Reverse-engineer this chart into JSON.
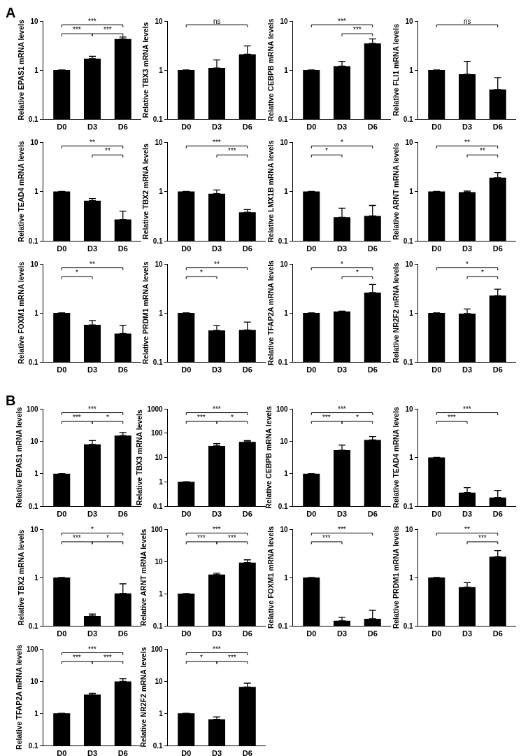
{
  "chart_data": [
    {
      "type": "bar",
      "ylabel": "Relative EPAS1 mRNA levels",
      "categories": [
        "D0",
        "D3",
        "D6"
      ],
      "values": [
        1,
        1.7,
        4.3
      ],
      "errors": [
        null,
        [
          1.7,
          1.9
        ],
        [
          4.3,
          4.7
        ]
      ],
      "color": "#000000",
      "log": true,
      "ylim": [
        0.1,
        10
      ],
      "yticks": [
        0.1,
        1,
        10
      ],
      "grid": false,
      "annotations": [
        "A",
        "***",
        "***",
        "***"
      ]
    },
    {
      "type": "bar",
      "ylabel": "Relative TBX3 mRNA levels",
      "categories": [
        "D0",
        "D3",
        "D6"
      ],
      "values": [
        1,
        1.1,
        2.1
      ],
      "errors": [
        null,
        [
          1.1,
          1.6
        ],
        [
          2.1,
          3.1
        ]
      ],
      "color": "#000000",
      "log": true,
      "ylim": [
        0.1,
        10
      ],
      "yticks": [
        0.1,
        1,
        10
      ],
      "grid": false,
      "annotations": [
        "ns"
      ]
    },
    {
      "type": "bar",
      "ylabel": "Relative CEBPB mRNA levels",
      "categories": [
        "D0",
        "D3",
        "D6"
      ],
      "values": [
        1,
        1.2,
        3.5
      ],
      "errors": [
        null,
        [
          1.2,
          1.5
        ],
        [
          3.5,
          4.3
        ]
      ],
      "color": "#000000",
      "log": true,
      "ylim": [
        0.1,
        10
      ],
      "yticks": [
        0.1,
        1,
        10
      ],
      "grid": false,
      "annotations": [
        "***",
        "***"
      ]
    },
    {
      "type": "bar",
      "ylabel": "Relative FLI1 mRNA levels",
      "categories": [
        "D0",
        "D3",
        "D6"
      ],
      "values": [
        1,
        0.82,
        0.4
      ],
      "errors": [
        null,
        [
          0.82,
          1.5
        ],
        [
          0.4,
          0.7
        ]
      ],
      "color": "#000000",
      "log": true,
      "ylim": [
        0.1,
        10
      ],
      "yticks": [
        0.1,
        1,
        10
      ],
      "grid": false,
      "annotations": [
        "ns"
      ]
    },
    {
      "type": "bar",
      "ylabel": "Relative TEAD4 mRNA levels",
      "categories": [
        "D0",
        "D3",
        "D6"
      ],
      "values": [
        1,
        0.65,
        0.27
      ],
      "errors": [
        null,
        [
          0.65,
          0.72
        ],
        [
          0.27,
          0.4
        ]
      ],
      "color": "#000000",
      "log": true,
      "ylim": [
        0.1,
        10
      ],
      "yticks": [
        0.1,
        1,
        10
      ],
      "grid": false,
      "annotations": [
        "**",
        "**"
      ]
    },
    {
      "type": "bar",
      "ylabel": "Relative TBX2 mRNA levels",
      "categories": [
        "D0",
        "D3",
        "D6"
      ],
      "values": [
        1,
        0.9,
        0.38
      ],
      "errors": [
        null,
        [
          0.9,
          1.07
        ],
        [
          0.38,
          0.43
        ]
      ],
      "color": "#000000",
      "log": true,
      "ylim": [
        0.1,
        10
      ],
      "yticks": [
        0.1,
        1,
        10
      ],
      "grid": false,
      "annotations": [
        "***",
        "***"
      ]
    },
    {
      "type": "bar",
      "ylabel": "Relative LMX1B mRNA levels",
      "categories": [
        "D0",
        "D3",
        "D6"
      ],
      "values": [
        1,
        0.3,
        0.32
      ],
      "errors": [
        null,
        [
          0.3,
          0.46
        ],
        [
          0.32,
          0.52
        ]
      ],
      "color": "#000000",
      "log": true,
      "ylim": [
        0.1,
        10
      ],
      "yticks": [
        0.1,
        1,
        10
      ],
      "grid": false,
      "annotations": [
        "*",
        "*"
      ]
    },
    {
      "type": "bar",
      "ylabel": "Relative ARNT mRNA levels",
      "categories": [
        "D0",
        "D3",
        "D6"
      ],
      "values": [
        1,
        0.97,
        1.9
      ],
      "errors": [
        null,
        [
          0.97,
          1.02
        ],
        [
          1.9,
          2.4
        ]
      ],
      "color": "#000000",
      "log": true,
      "ylim": [
        0.1,
        10
      ],
      "yticks": [
        0.1,
        1,
        10
      ],
      "grid": false,
      "annotations": [
        "**",
        "**"
      ]
    },
    {
      "type": "bar",
      "ylabel": "Relative FOXM1 mRNA levels",
      "categories": [
        "D0",
        "D3",
        "D6"
      ],
      "values": [
        1,
        0.57,
        0.38
      ],
      "errors": [
        null,
        [
          0.57,
          0.7
        ],
        [
          0.38,
          0.56
        ]
      ],
      "color": "#000000",
      "log": true,
      "ylim": [
        0.1,
        10
      ],
      "yticks": [
        0.1,
        1,
        10
      ],
      "grid": false,
      "annotations": [
        "**",
        "*"
      ]
    },
    {
      "type": "bar",
      "ylabel": "Relative PRDM1 mRNA levels",
      "categories": [
        "D0",
        "D3",
        "D6"
      ],
      "values": [
        1,
        0.44,
        0.45
      ],
      "errors": [
        null,
        [
          0.44,
          0.55
        ],
        [
          0.45,
          0.65
        ]
      ],
      "color": "#000000",
      "log": true,
      "ylim": [
        0.1,
        10
      ],
      "yticks": [
        0.1,
        1,
        10
      ],
      "grid": false,
      "annotations": [
        "**",
        "*"
      ]
    },
    {
      "type": "bar",
      "ylabel": "Relative TFAP2A mRNA levels",
      "categories": [
        "D0",
        "D3",
        "D6"
      ],
      "values": [
        1,
        1.07,
        2.6
      ],
      "errors": [
        null,
        [
          1.07,
          1.09
        ],
        [
          2.6,
          3.8
        ]
      ],
      "color": "#000000",
      "log": true,
      "ylim": [
        0.1,
        10
      ],
      "yticks": [
        0.1,
        1,
        10
      ],
      "grid": false,
      "annotations": [
        "*",
        "*"
      ]
    },
    {
      "type": "bar",
      "ylabel": "Relative NR2F2 mRNA levels",
      "categories": [
        "D0",
        "D3",
        "D6"
      ],
      "values": [
        1,
        0.97,
        2.25
      ],
      "errors": [
        null,
        [
          0.97,
          1.2
        ],
        [
          2.25,
          3.05
        ]
      ],
      "color": "#000000",
      "log": true,
      "ylim": [
        0.1,
        10
      ],
      "yticks": [
        0.1,
        1,
        10
      ],
      "grid": false,
      "annotations": [
        "*",
        "*"
      ]
    },
    {
      "type": "bar",
      "ylabel": "Relative EPAS1 mRNA levels",
      "categories": [
        "D0",
        "D3",
        "D6"
      ],
      "values": [
        1,
        8,
        15
      ],
      "errors": [
        null,
        [
          8,
          10.5
        ],
        [
          15,
          18.5
        ]
      ],
      "color": "#000000",
      "log": true,
      "ylim": [
        0.1,
        100
      ],
      "yticks": [
        0.1,
        1,
        10,
        100
      ],
      "grid": false,
      "annotations": [
        "B",
        "***",
        "***",
        "*"
      ]
    },
    {
      "type": "bar",
      "ylabel": "Relative TBX3 mRNA levels",
      "categories": [
        "D0",
        "D3",
        "D6"
      ],
      "values": [
        1,
        30,
        44
      ],
      "errors": [
        null,
        [
          30,
          37
        ],
        [
          44,
          49
        ]
      ],
      "color": "#000000",
      "log": true,
      "ylim": [
        0.1,
        1000
      ],
      "yticks": [
        0.1,
        1,
        10,
        100,
        1000
      ],
      "grid": false,
      "annotations": [
        "***",
        "***",
        "*"
      ]
    },
    {
      "type": "bar",
      "ylabel": "Relative CEBPB mRNA levels",
      "categories": [
        "D0",
        "D3",
        "D6"
      ],
      "values": [
        1,
        5.3,
        11
      ],
      "errors": [
        null,
        [
          5.3,
          7.6
        ],
        [
          11,
          14
        ]
      ],
      "color": "#000000",
      "log": true,
      "ylim": [
        0.1,
        100
      ],
      "yticks": [
        0.1,
        1,
        10,
        100
      ],
      "grid": false,
      "annotations": [
        "***",
        "***",
        "*"
      ]
    },
    {
      "type": "bar",
      "ylabel": "Relative TEAD4 mRNA levels",
      "categories": [
        "D0",
        "D3",
        "D6"
      ],
      "values": [
        1,
        0.19,
        0.15
      ],
      "errors": [
        null,
        [
          0.19,
          0.24
        ],
        [
          0.15,
          0.21
        ]
      ],
      "color": "#000000",
      "log": true,
      "ylim": [
        0.1,
        10
      ],
      "yticks": [
        0.1,
        1,
        10
      ],
      "grid": false,
      "annotations": [
        "***",
        "***"
      ]
    },
    {
      "type": "bar",
      "ylabel": "Relative TBX2 mRNA levels",
      "categories": [
        "D0",
        "D3",
        "D6"
      ],
      "values": [
        1,
        0.16,
        0.47
      ],
      "errors": [
        null,
        [
          0.16,
          0.175
        ],
        [
          0.47,
          0.74
        ]
      ],
      "color": "#000000",
      "log": true,
      "ylim": [
        0.1,
        10
      ],
      "yticks": [
        0.1,
        1,
        10
      ],
      "grid": false,
      "annotations": [
        "*",
        "***",
        "*"
      ]
    },
    {
      "type": "bar",
      "ylabel": "Relative ARNT mRNA levels",
      "categories": [
        "D0",
        "D3",
        "D6"
      ],
      "values": [
        1,
        3.9,
        9.2
      ],
      "errors": [
        null,
        [
          3.9,
          4.3
        ],
        [
          9.2,
          11.2
        ]
      ],
      "color": "#000000",
      "log": true,
      "ylim": [
        0.1,
        100
      ],
      "yticks": [
        0.1,
        1,
        10,
        100
      ],
      "grid": false,
      "annotations": [
        "***",
        "***",
        "***"
      ]
    },
    {
      "type": "bar",
      "ylabel": "Relative FOXM1 mRNA levels",
      "categories": [
        "D0",
        "D3",
        "D6"
      ],
      "values": [
        1,
        0.127,
        0.14
      ],
      "errors": [
        null,
        [
          0.127,
          0.15
        ],
        [
          0.14,
          0.21
        ]
      ],
      "color": "#000000",
      "log": true,
      "ylim": [
        0.1,
        10
      ],
      "yticks": [
        0.1,
        1,
        10
      ],
      "grid": false,
      "annotations": [
        "***",
        "***"
      ]
    },
    {
      "type": "bar",
      "ylabel": "Relative PRDM1 mRNA levels",
      "categories": [
        "D0",
        "D3",
        "D6"
      ],
      "values": [
        1,
        0.63,
        2.7
      ],
      "errors": [
        null,
        [
          0.63,
          0.78
        ],
        [
          2.7,
          3.6
        ]
      ],
      "color": "#000000",
      "log": true,
      "ylim": [
        0.1,
        10
      ],
      "yticks": [
        0.1,
        1,
        10
      ],
      "grid": false,
      "annotations": [
        "**",
        "***"
      ]
    },
    {
      "type": "bar",
      "ylabel": "Relative TFAP2A mRNA levels",
      "categories": [
        "D0",
        "D3",
        "D6"
      ],
      "values": [
        1,
        3.8,
        9.8
      ],
      "errors": [
        null,
        [
          3.8,
          4.2
        ],
        [
          9.8,
          11.8
        ]
      ],
      "color": "#000000",
      "log": true,
      "ylim": [
        0.1,
        100
      ],
      "yticks": [
        0.1,
        1,
        10,
        100
      ],
      "grid": false,
      "annotations": [
        "***",
        "***",
        "***"
      ]
    },
    {
      "type": "bar",
      "ylabel": "Relative NR2F2 mRNA levels",
      "categories": [
        "D0",
        "D3",
        "D6"
      ],
      "values": [
        1,
        0.65,
        6.6
      ],
      "errors": [
        null,
        [
          0.65,
          0.77
        ],
        [
          6.6,
          8.6
        ]
      ],
      "color": "#000000",
      "log": true,
      "ylim": [
        0.1,
        100
      ],
      "yticks": [
        0.1,
        1,
        10,
        100
      ],
      "grid": false,
      "annotations": [
        "***",
        "*",
        "***"
      ]
    }
  ]
}
